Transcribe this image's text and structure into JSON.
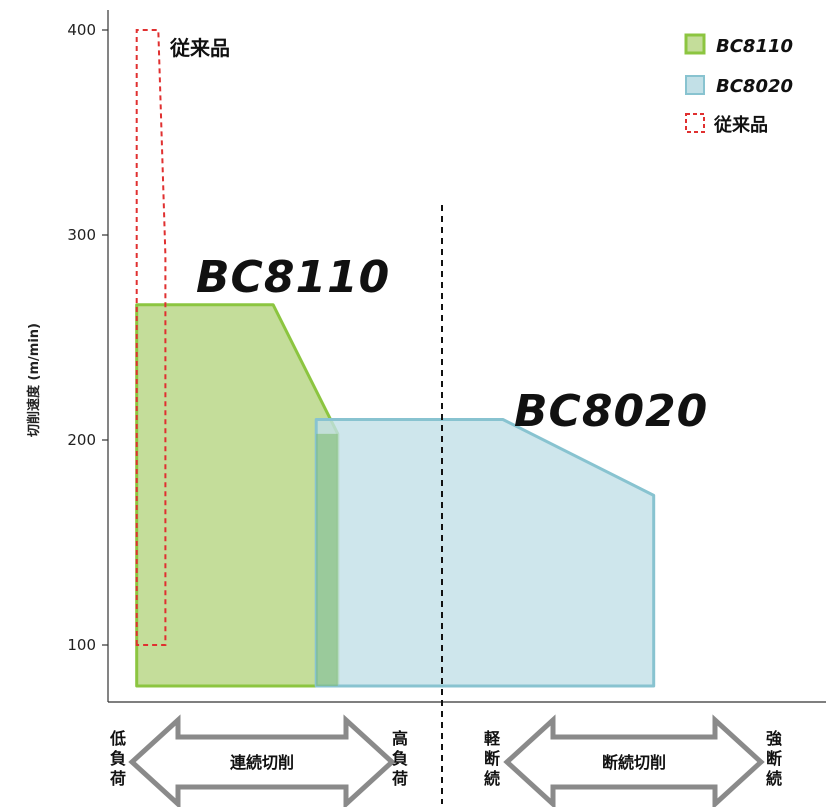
{
  "chart_data": {
    "type": "area",
    "ylabel": "切削速度 (m/min)",
    "ylim": [
      80,
      410
    ],
    "yticks": [
      100,
      200,
      300,
      400
    ],
    "xlim": [
      0,
      100
    ],
    "series": [
      {
        "name": "BC8110",
        "color": "#8cc540",
        "fill": "#c4dd9a",
        "points": [
          [
            4,
            80
          ],
          [
            4,
            266
          ],
          [
            23,
            266
          ],
          [
            32,
            203
          ],
          [
            32,
            80
          ]
        ]
      },
      {
        "name": "BC8020",
        "color": "#88c3d0",
        "fill": "#c2e0e7",
        "points": [
          [
            29,
            80
          ],
          [
            29,
            210
          ],
          [
            55,
            210
          ],
          [
            76,
            173
          ],
          [
            76,
            80
          ]
        ]
      },
      {
        "name": "従来品",
        "color": "#e03030",
        "style": "dashed",
        "points": [
          [
            4,
            100
          ],
          [
            4,
            400
          ],
          [
            7,
            400
          ],
          [
            8,
            290
          ],
          [
            8,
            100
          ]
        ]
      }
    ],
    "divider_x": 51,
    "annotations": {
      "left_arrow": "連続切削",
      "right_arrow": "断続切削",
      "low_load": "低負荷",
      "high_load": "高負荷",
      "light_interrupt": "軽断続",
      "heavy_interrupt": "強断続"
    },
    "legend_position": "top-right"
  }
}
